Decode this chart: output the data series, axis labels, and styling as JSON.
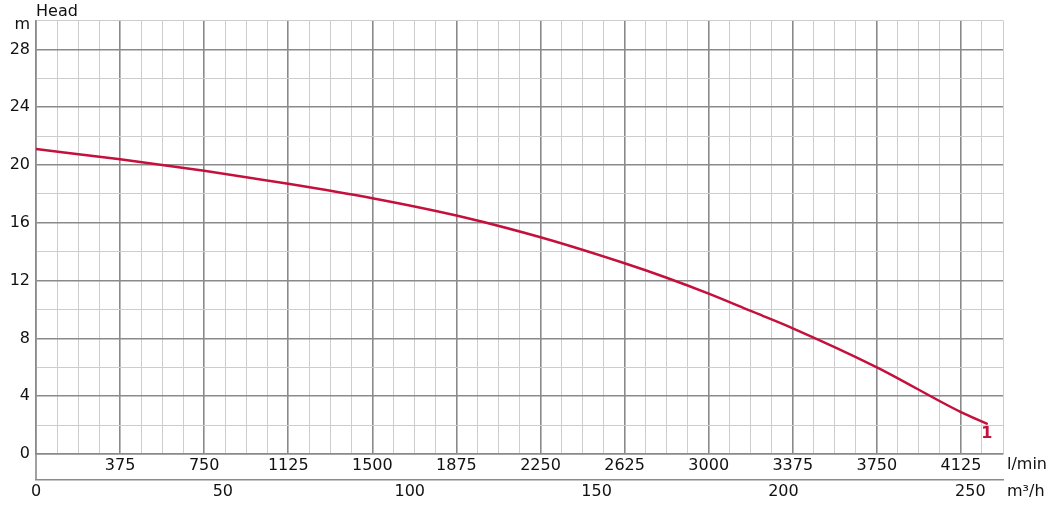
{
  "chart_data": {
    "type": "line",
    "ylabel": "Head",
    "xlabel": "l/min",
    "x2label": "m³/h",
    "annotations": [
      "m"
    ],
    "series": [
      {
        "name": "1",
        "color": "#c4103c",
        "x": [
          0,
          375,
          750,
          1125,
          1500,
          1875,
          2250,
          2625,
          2812.5,
          3000,
          3187.5,
          3375,
          3750,
          4125,
          4240
        ],
        "values": [
          21.1,
          20.4,
          19.6,
          18.7,
          17.7,
          16.5,
          15.0,
          13.2,
          12.2,
          11.1,
          9.9,
          8.7,
          6.0,
          2.9,
          2.1
        ]
      }
    ],
    "xlim": [
      0,
      4312.5
    ],
    "xticks": [
      {
        "value": 0,
        "label": null
      },
      {
        "value": 93.75,
        "label": null
      },
      {
        "value": 187.5,
        "label": null
      },
      {
        "value": 281.25,
        "label": null
      },
      375,
      {
        "value": 468.75,
        "label": null
      },
      {
        "value": 562.5,
        "label": null
      },
      {
        "value": 656.25,
        "label": null
      },
      750,
      {
        "value": 843.75,
        "label": null
      },
      {
        "value": 937.5,
        "label": null
      },
      {
        "value": 1031.25,
        "label": null
      },
      1125,
      {
        "value": 1218.75,
        "label": null
      },
      {
        "value": 1312.5,
        "label": null
      },
      {
        "value": 1406.25,
        "label": null
      },
      1500,
      {
        "value": 1593.75,
        "label": null
      },
      {
        "value": 1687.5,
        "label": null
      },
      {
        "value": 1781.25,
        "label": null
      },
      1875,
      {
        "value": 1968.75,
        "label": null
      },
      {
        "value": 2062.5,
        "label": null
      },
      {
        "value": 2156.25,
        "label": null
      },
      2250,
      {
        "value": 2343.75,
        "label": null
      },
      {
        "value": 2437.5,
        "label": null
      },
      {
        "value": 2531.25,
        "label": null
      },
      2625,
      {
        "value": 2718.75,
        "label": null
      },
      {
        "value": 2812.5,
        "label": null
      },
      {
        "value": 2906.25,
        "label": null
      },
      3000,
      {
        "value": 3093.75,
        "label": null
      },
      {
        "value": 3187.5,
        "label": null
      },
      {
        "value": 3281.25,
        "label": null
      },
      3375,
      {
        "value": 3468.75,
        "label": null
      },
      {
        "value": 3562.5,
        "label": null
      },
      {
        "value": 3656.25,
        "label": null
      },
      3750,
      {
        "value": 3843.75,
        "label": null
      },
      {
        "value": 3937.5,
        "label": null
      },
      {
        "value": 4031.25,
        "label": null
      },
      4125,
      {
        "value": 4218.75,
        "label": null
      },
      {
        "value": 4312.5,
        "label": null
      }
    ],
    "x2lim": [
      0,
      258.75
    ],
    "x2ticks": [
      0,
      50,
      100,
      150,
      200,
      250
    ],
    "ylim": [
      0,
      30
    ],
    "yticks": [
      0,
      {
        "value": 2,
        "label": null
      },
      4,
      {
        "value": 6,
        "label": null
      },
      8,
      {
        "value": 10,
        "label": null
      },
      12,
      {
        "value": 14,
        "label": null
      },
      16,
      {
        "value": 18,
        "label": null
      },
      20,
      {
        "value": 22,
        "label": null
      },
      24,
      {
        "value": 26,
        "label": null
      },
      28,
      {
        "value": 30,
        "label": null
      }
    ],
    "grid": true,
    "legend": false,
    "marker": "none",
    "line_style": "solid"
  }
}
